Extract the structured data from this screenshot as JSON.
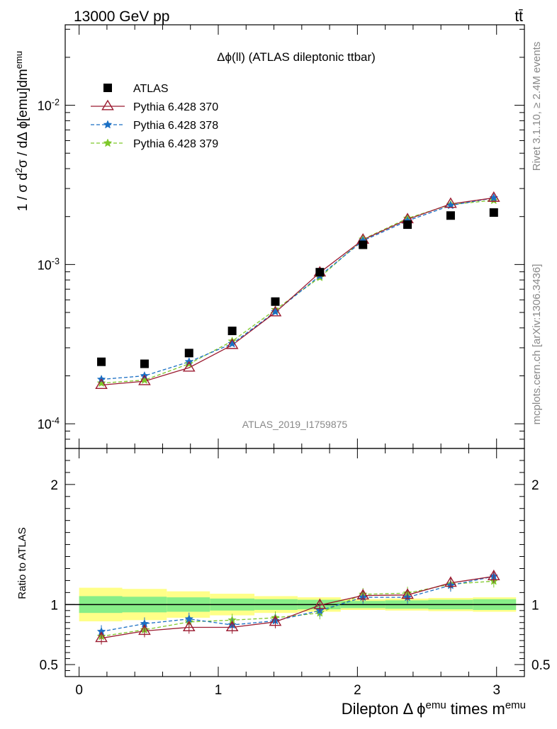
{
  "header": {
    "energy": "13000 GeV pp",
    "process": "tt̄"
  },
  "side": {
    "rivet": "Rivet 3.1.10, ≥ 2.4M events",
    "mcplots": "mcplots.cern.ch [arXiv:1306.3436]"
  },
  "chart_data": [
    {
      "type": "line",
      "title": "Δϕ(ll) (ATLAS dileptonic ttbar)",
      "watermark": "ATLAS_2019_I1759875",
      "ylabel": "1 / σ  d²σ / dΔ ϕ[emu]dm^emu",
      "yscale": "log",
      "xlim": [
        -0.1,
        3.2
      ],
      "ylim": [
        7e-05,
        0.032
      ],
      "ytick_labels": [
        "10^-4",
        "10^-3",
        "10^-2"
      ],
      "legend_position": "top-left",
      "x": [
        0.16,
        0.47,
        0.79,
        1.1,
        1.41,
        1.73,
        2.04,
        2.36,
        2.67,
        2.98
      ],
      "series": [
        {
          "name": "ATLAS",
          "color": "#000000",
          "marker": "square",
          "values": [
            0.000245,
            0.000238,
            0.000278,
            0.000383,
            0.000585,
            0.000895,
            0.00133,
            0.00178,
            0.00203,
            0.00212
          ]
        },
        {
          "name": "Pythia 6.428 370",
          "color": "#9b1b30",
          "marker": "triangle-open",
          "line": "solid",
          "values": [
            0.000175,
            0.000185,
            0.000225,
            0.000312,
            0.0005,
            0.00089,
            0.00143,
            0.00192,
            0.0024,
            0.00262
          ]
        },
        {
          "name": "Pythia 6.428 378",
          "color": "#1a6fc4",
          "marker": "star",
          "line": "dashed",
          "values": [
            0.00019,
            0.0002,
            0.000245,
            0.000318,
            0.000505,
            0.00085,
            0.00141,
            0.00188,
            0.00235,
            0.00262
          ]
        },
        {
          "name": "Pythia 6.428 379",
          "color": "#7ec82a",
          "marker": "star",
          "line": "dashed",
          "values": [
            0.00018,
            0.000188,
            0.000238,
            0.00033,
            0.00052,
            0.00083,
            0.00144,
            0.00195,
            0.00238,
            0.00253
          ]
        }
      ]
    },
    {
      "type": "line",
      "ylabel": "Ratio to ATLAS",
      "xlabel": "Dilepton Δ ϕ^emu times m^emu",
      "xlim": [
        -0.1,
        3.2
      ],
      "ylim": [
        0.4,
        2.3
      ],
      "xtick_labels": [
        "0",
        "1",
        "2",
        "3"
      ],
      "ytick_labels": [
        "0.5",
        "1",
        "2"
      ],
      "x": [
        0.16,
        0.47,
        0.79,
        1.1,
        1.41,
        1.73,
        2.04,
        2.36,
        2.67,
        2.98
      ],
      "band_edges": [
        0.0,
        0.31,
        0.63,
        0.94,
        1.26,
        1.57,
        1.88,
        2.2,
        2.51,
        2.83,
        3.14
      ],
      "band_inner": [
        0.07,
        0.065,
        0.06,
        0.05,
        0.045,
        0.04,
        0.03,
        0.035,
        0.04,
        0.045
      ],
      "band_outer": [
        0.14,
        0.13,
        0.11,
        0.09,
        0.07,
        0.06,
        0.045,
        0.05,
        0.055,
        0.06
      ],
      "series": [
        {
          "name": "Pythia 6.428 370",
          "color": "#9b1b30",
          "values": [
            0.72,
            0.78,
            0.81,
            0.81,
            0.855,
            0.995,
            1.075,
            1.08,
            1.18,
            1.235
          ]
        },
        {
          "name": "Pythia 6.428 378",
          "color": "#1a6fc4",
          "values": [
            0.775,
            0.84,
            0.88,
            0.83,
            0.865,
            0.95,
            1.06,
            1.06,
            1.16,
            1.235
          ]
        },
        {
          "name": "Pythia 6.428 379",
          "color": "#7ec82a",
          "values": [
            0.735,
            0.79,
            0.855,
            0.87,
            0.89,
            0.93,
            1.085,
            1.095,
            1.17,
            1.195
          ]
        }
      ]
    }
  ]
}
